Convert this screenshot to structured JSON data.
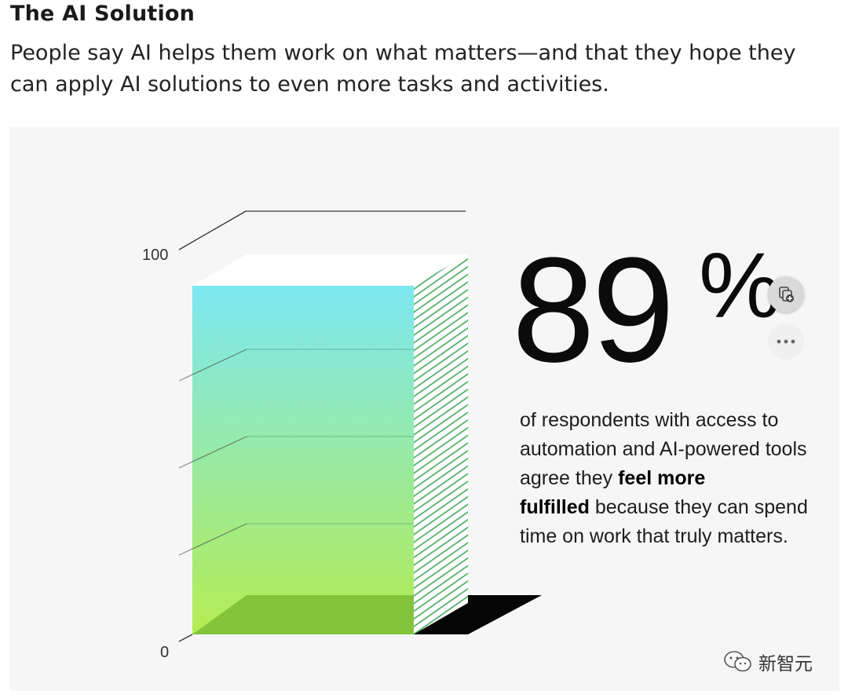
{
  "header": {
    "title": "The AI Solution",
    "subtitle": "People say AI helps them work on what matters—and that they hope they can apply AI solutions to even more tasks and activities."
  },
  "chart_data": {
    "type": "bar",
    "style": "3d-single-bar",
    "categories": [
      ""
    ],
    "values": [
      89
    ],
    "ylim": [
      0,
      100
    ],
    "yticks": [
      "100",
      "0"
    ],
    "gradient_colors": {
      "top": "#7de8f2",
      "bottom": "#b4ec52"
    },
    "hatch_color": "#3fa85a"
  },
  "stat": {
    "value": "89",
    "unit": "%",
    "desc_1": "of respondents with access to automation and AI-powered tools agree they ",
    "desc_bold_1": "feel more",
    "desc_bold_2": "fulfilled",
    "desc_2": " because they can spend time on work that truly matters."
  },
  "actions": {
    "copy_icon": "copy-add-icon",
    "more_icon": "more-horizontal-icon"
  },
  "watermark": {
    "icon": "wechat-icon",
    "text": "新智元"
  }
}
